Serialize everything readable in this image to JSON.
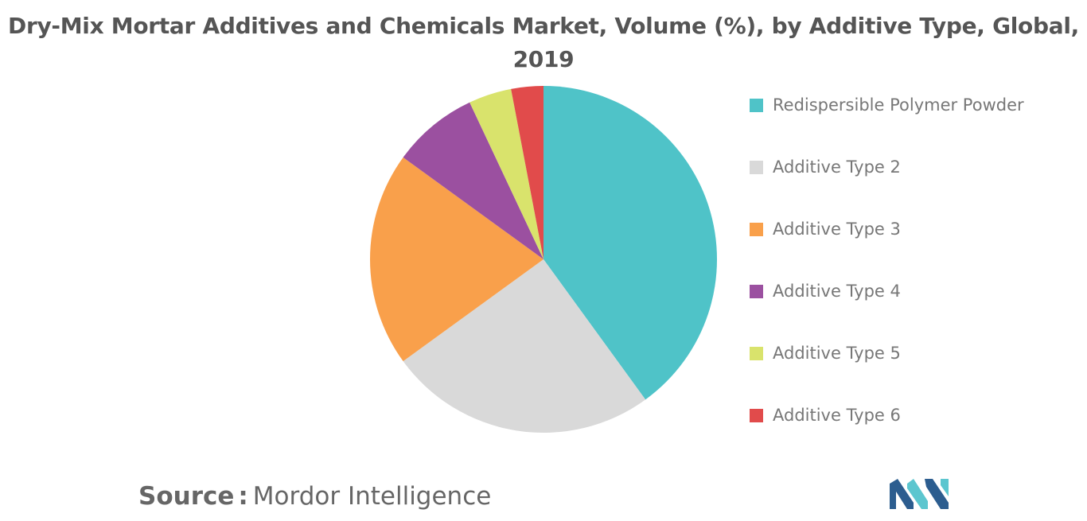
{
  "chart_data": {
    "type": "pie",
    "title_line1": "Dry-Mix Mortar Additives and Chemicals Market, Volume (%), by Additive Type, Global,",
    "title_line2": "2019",
    "slices": [
      {
        "label": "Redispersible Polymer Powder",
        "value": 40,
        "color": "#4fc3c8"
      },
      {
        "label": "Additive Type 2",
        "value": 25,
        "color": "#d9d9d9"
      },
      {
        "label": "Additive Type 3",
        "value": 20,
        "color": "#f9a04b"
      },
      {
        "label": "Additive Type 4",
        "value": 8,
        "color": "#9b50a0"
      },
      {
        "label": "Additive Type 5",
        "value": 4,
        "color": "#d9e36c"
      },
      {
        "label": "Additive Type 6",
        "value": 3,
        "color": "#e14b4b"
      }
    ],
    "legend_position": "right"
  },
  "source": {
    "key": "Source",
    "separator": ":",
    "value": "Mordor Intelligence"
  },
  "logo": {
    "name": "mordor-intelligence-logo",
    "colors": [
      "#2c5d8f",
      "#5cc6cf"
    ]
  }
}
